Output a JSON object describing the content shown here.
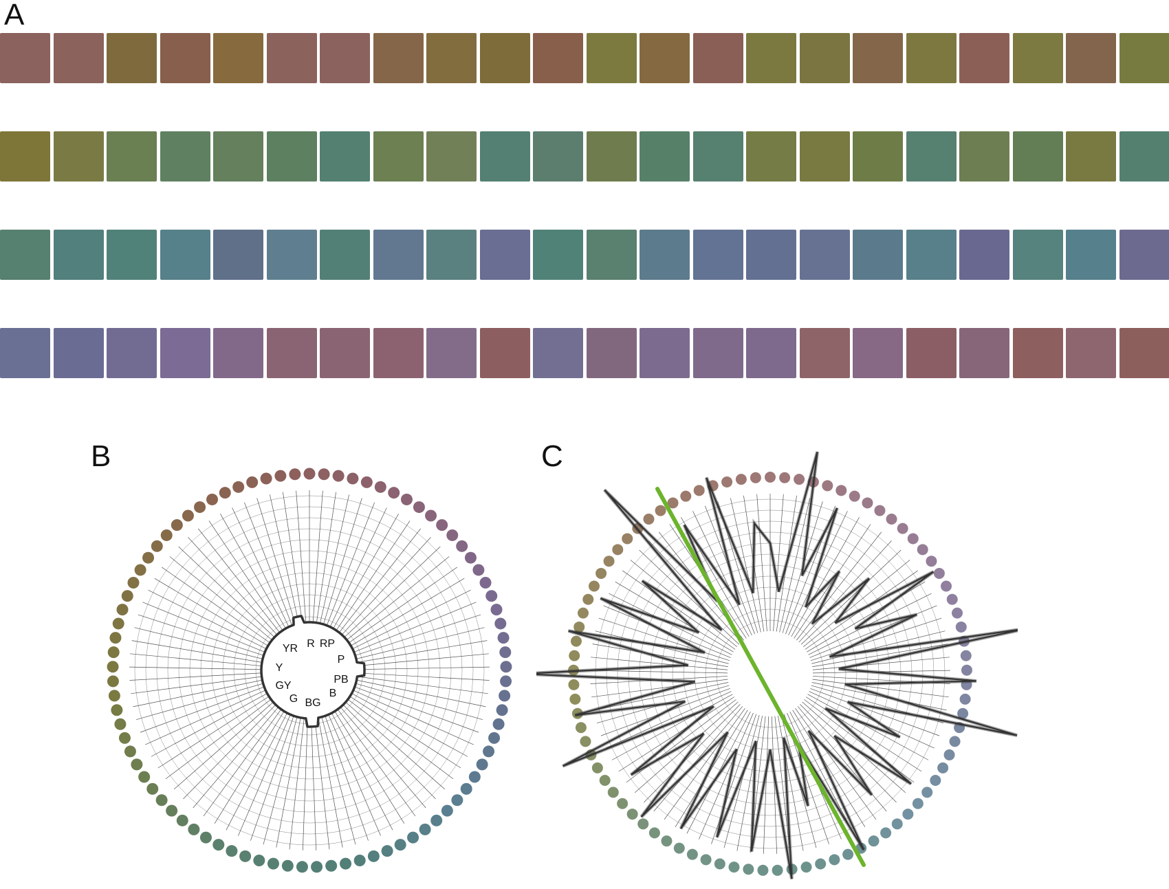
{
  "panels": {
    "a": "A",
    "b": "B",
    "c": "C"
  },
  "chip_rows": [
    [
      "#8b625e",
      "#8b625c",
      "#7e6a3c",
      "#875f4c",
      "#876b3e",
      "#8c625c",
      "#8b625e",
      "#866648",
      "#826d3f",
      "#7e6c3a",
      "#885f4b",
      "#7d7a40",
      "#856940",
      "#8a5f56",
      "#7b7940",
      "#7b7541",
      "#84674a",
      "#7d7840",
      "#8b5f56",
      "#7c7941",
      "#83644c",
      "#777b40"
    ],
    [
      "#7e7539",
      "#7a7b44",
      "#6a7f52",
      "#5f8161",
      "#64805d",
      "#5d8060",
      "#538070",
      "#6c8052",
      "#728058",
      "#538073",
      "#5b7e6e",
      "#6f7c4e",
      "#568068",
      "#568070",
      "#757c45",
      "#787a42",
      "#6e7d48",
      "#568070",
      "#6c7e52",
      "#637e55",
      "#787a42",
      "#548070"
    ],
    [
      "#568070",
      "#52807c",
      "#508279",
      "#56808a",
      "#607089",
      "#5f7f90",
      "#528076",
      "#617890",
      "#5a8180",
      "#6a6e92",
      "#508278",
      "#5a8070",
      "#5c7b8d",
      "#637393",
      "#637092",
      "#677293",
      "#5b7b8d",
      "#58808a",
      "#696890",
      "#56837e",
      "#55808c",
      "#6c6a8f"
    ],
    [
      "#6a6f94",
      "#6a6c93",
      "#726b92",
      "#7b6b95",
      "#82698a",
      "#8a6472",
      "#8b6473",
      "#8c6270",
      "#836c8a",
      "#8d5e60",
      "#736f93",
      "#82687f",
      "#7d6b8f",
      "#7f6a8b",
      "#7d6a8d",
      "#8e6468",
      "#876885",
      "#8b5e66",
      "#876679",
      "#8e5f5f",
      "#8d6670",
      "#8d5f5c"
    ]
  ],
  "dial_b": {
    "hue_labels": [
      "R",
      "RP",
      "P",
      "PB",
      "B",
      "BG",
      "G",
      "GY",
      "Y",
      "YR"
    ]
  },
  "colors": {
    "chip_gap": "#ffffff",
    "grid_line": "#333333",
    "trace": "#333333",
    "best_fit_line": "#6cb42c"
  }
}
